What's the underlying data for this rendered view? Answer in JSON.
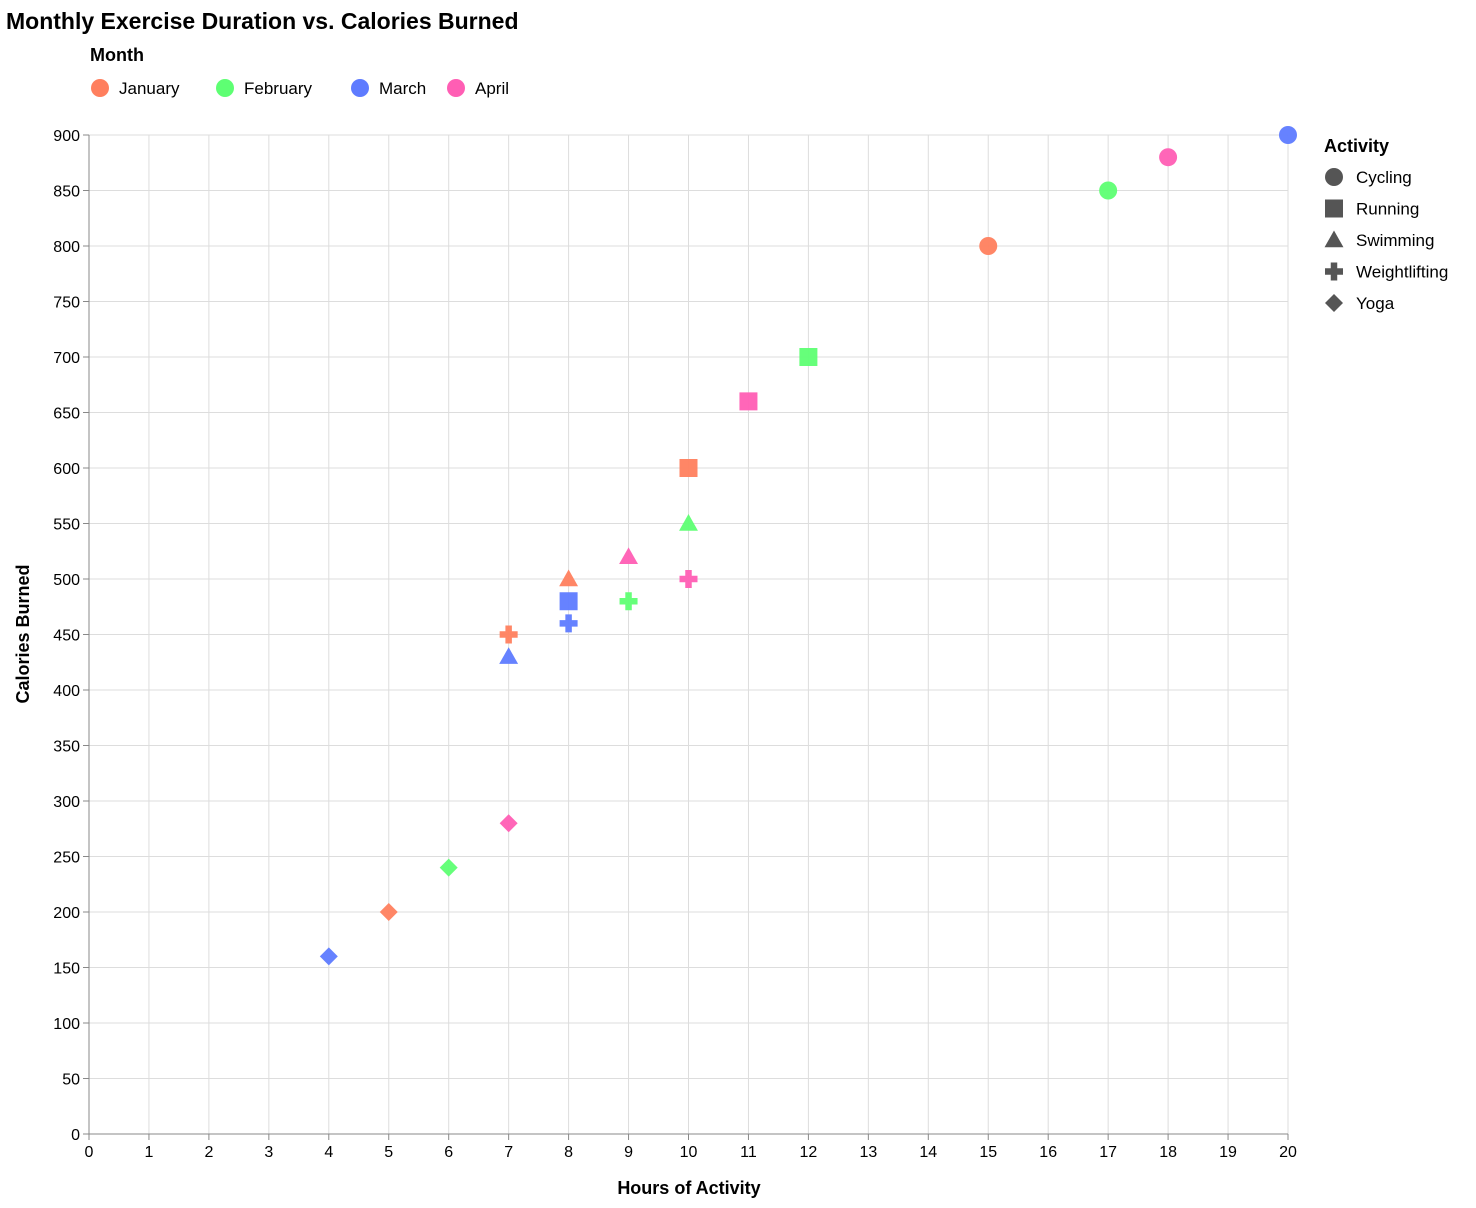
{
  "chart_data": {
    "type": "scatter",
    "title": "Monthly Exercise Duration vs. Calories Burned",
    "xlabel": "Hours of Activity",
    "ylabel": "Calories Burned",
    "xlim": [
      0,
      20
    ],
    "ylim": [
      0,
      900
    ],
    "x_ticks": [
      0,
      1,
      2,
      3,
      4,
      5,
      6,
      7,
      8,
      9,
      10,
      11,
      12,
      13,
      14,
      15,
      16,
      17,
      18,
      19,
      20
    ],
    "y_ticks": [
      0,
      50,
      100,
      150,
      200,
      250,
      300,
      350,
      400,
      450,
      500,
      550,
      600,
      650,
      700,
      750,
      800,
      850,
      900
    ],
    "grid": true,
    "color_legend": {
      "title": "Month",
      "placement": "top-left",
      "entries": [
        {
          "label": "January",
          "color": "#ff7f5e"
        },
        {
          "label": "February",
          "color": "#5eff73"
        },
        {
          "label": "March",
          "color": "#5e7bff"
        },
        {
          "label": "April",
          "color": "#ff5eb4"
        }
      ]
    },
    "shape_legend": {
      "title": "Activity",
      "placement": "right",
      "entries": [
        {
          "label": "Cycling",
          "shape": "circle"
        },
        {
          "label": "Running",
          "shape": "square"
        },
        {
          "label": "Swimming",
          "shape": "triangle"
        },
        {
          "label": "Weightlifting",
          "shape": "cross"
        },
        {
          "label": "Yoga",
          "shape": "diamond"
        }
      ]
    },
    "points": [
      {
        "month": "January",
        "activity": "Cycling",
        "x": 15,
        "y": 800
      },
      {
        "month": "January",
        "activity": "Running",
        "x": 10,
        "y": 600
      },
      {
        "month": "January",
        "activity": "Swimming",
        "x": 8,
        "y": 500
      },
      {
        "month": "January",
        "activity": "Weightlifting",
        "x": 7,
        "y": 450
      },
      {
        "month": "January",
        "activity": "Yoga",
        "x": 5,
        "y": 200
      },
      {
        "month": "February",
        "activity": "Cycling",
        "x": 17,
        "y": 850
      },
      {
        "month": "February",
        "activity": "Running",
        "x": 12,
        "y": 700
      },
      {
        "month": "February",
        "activity": "Swimming",
        "x": 10,
        "y": 550
      },
      {
        "month": "February",
        "activity": "Weightlifting",
        "x": 9,
        "y": 480
      },
      {
        "month": "February",
        "activity": "Yoga",
        "x": 6,
        "y": 240
      },
      {
        "month": "March",
        "activity": "Cycling",
        "x": 20,
        "y": 900
      },
      {
        "month": "March",
        "activity": "Running",
        "x": 8,
        "y": 480
      },
      {
        "month": "March",
        "activity": "Swimming",
        "x": 7,
        "y": 430
      },
      {
        "month": "March",
        "activity": "Weightlifting",
        "x": 8,
        "y": 460
      },
      {
        "month": "March",
        "activity": "Yoga",
        "x": 4,
        "y": 160
      },
      {
        "month": "April",
        "activity": "Cycling",
        "x": 18,
        "y": 880
      },
      {
        "month": "April",
        "activity": "Running",
        "x": 11,
        "y": 660
      },
      {
        "month": "April",
        "activity": "Swimming",
        "x": 9,
        "y": 520
      },
      {
        "month": "April",
        "activity": "Weightlifting",
        "x": 10,
        "y": 500
      },
      {
        "month": "April",
        "activity": "Yoga",
        "x": 7,
        "y": 280
      }
    ]
  }
}
